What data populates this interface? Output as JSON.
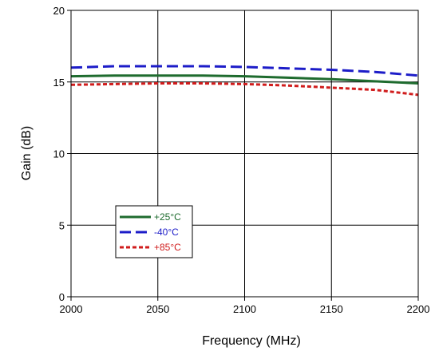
{
  "chart_data": {
    "type": "line",
    "title": "",
    "xlabel": "Frequency (MHz)",
    "ylabel": "Gain (dB)",
    "xlim": [
      2000,
      2200
    ],
    "ylim": [
      0,
      20
    ],
    "xticks": [
      2000,
      2050,
      2100,
      2150,
      2200
    ],
    "yticks": [
      0,
      5,
      10,
      15,
      20
    ],
    "xtick_labels": [
      "2000",
      "2050",
      "2100",
      "2150",
      "2200"
    ],
    "ytick_labels": [
      "0",
      "5",
      "10",
      "15",
      "20"
    ],
    "grid": true,
    "legend_position": "lower-left",
    "series": [
      {
        "name": "+25°C",
        "color": "#1e6b2e",
        "dash": "solid",
        "x": [
          2000,
          2025,
          2050,
          2075,
          2100,
          2125,
          2150,
          2175,
          2200
        ],
        "y": [
          15.4,
          15.45,
          15.45,
          15.45,
          15.4,
          15.3,
          15.2,
          15.05,
          14.9
        ]
      },
      {
        "name": "-40°C",
        "color": "#1c1cc8",
        "dash": "long-dash",
        "x": [
          2000,
          2025,
          2050,
          2075,
          2100,
          2125,
          2150,
          2175,
          2200
        ],
        "y": [
          16.0,
          16.1,
          16.1,
          16.1,
          16.05,
          15.95,
          15.85,
          15.7,
          15.45
        ]
      },
      {
        "name": "+85°C",
        "color": "#d01c1c",
        "dash": "short-dash",
        "x": [
          2000,
          2025,
          2050,
          2075,
          2100,
          2125,
          2150,
          2175,
          2200
        ],
        "y": [
          14.8,
          14.85,
          14.9,
          14.9,
          14.85,
          14.75,
          14.6,
          14.45,
          14.1
        ]
      }
    ]
  }
}
